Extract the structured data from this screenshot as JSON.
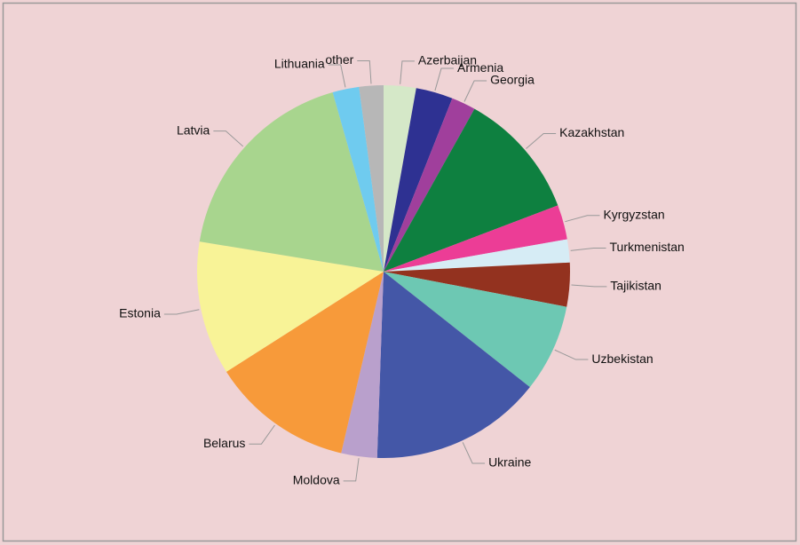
{
  "chart_data": {
    "type": "pie",
    "categories": [
      "Azerbaijan",
      "Armenia",
      "Georgia",
      "Kazakhstan",
      "Kyrgyzstan",
      "Turkmenistan",
      "Tajikistan",
      "Uzbekistan",
      "Ukraine",
      "Moldova",
      "Belarus",
      "Estonia",
      "Latvia",
      "Lithuania",
      "other"
    ],
    "values": [
      2.8,
      3.2,
      2.1,
      11.1,
      3.0,
      2.0,
      3.8,
      7.6,
      14.9,
      3.1,
      12.3,
      11.6,
      18.0,
      2.3,
      2.1
    ],
    "colors": [
      "#d5e8c8",
      "#2e3192",
      "#a03f9c",
      "#0e8040",
      "#ec3d96",
      "#d6ecf5",
      "#93321f",
      "#6dc8b3",
      "#4457a7",
      "#b9a0cc",
      "#f79a3a",
      "#f8f397",
      "#a8d58e",
      "#6fcbef",
      "#b7b7b7"
    ]
  }
}
